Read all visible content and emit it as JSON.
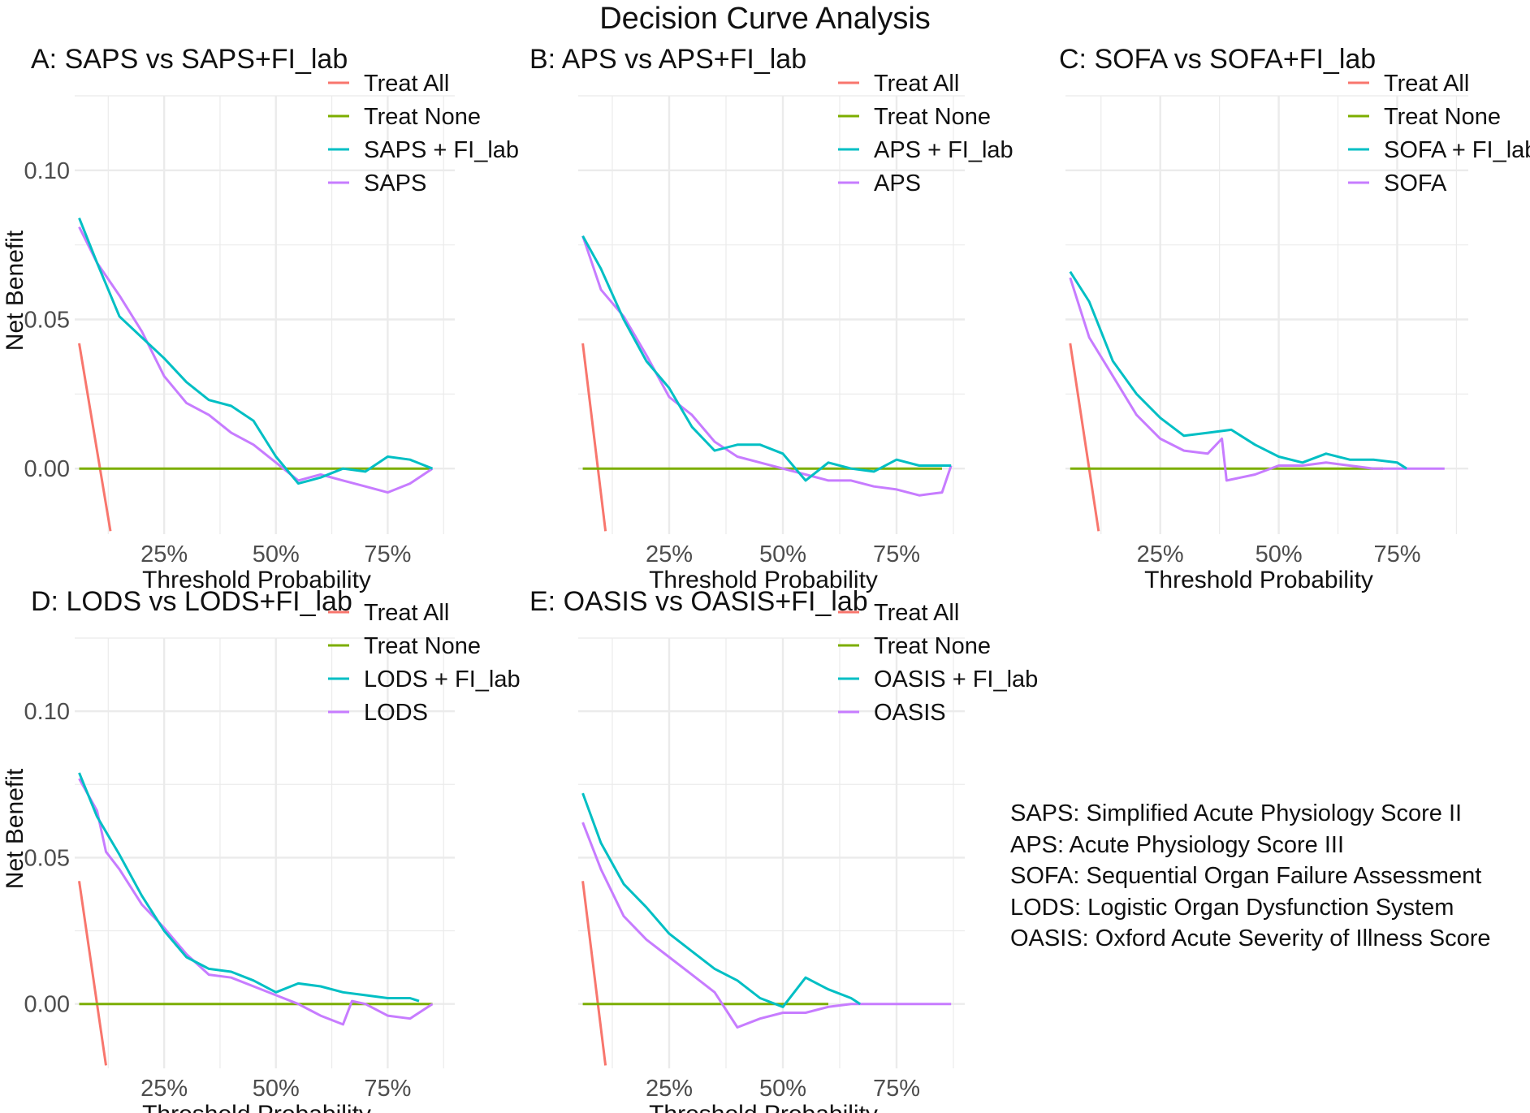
{
  "figure_title": "Decision Curve Analysis",
  "colors": {
    "treat_all": "#F8766D",
    "treat_none": "#7CAE00",
    "model_fi": "#00BFC4",
    "model_base": "#C77CFF",
    "grid": "#ebebeb",
    "tick_text": "#4d4d4d"
  },
  "abbreviations": [
    "SAPS: Simplified Acute Physiology Score II",
    "APS: Acute Physiology Score III",
    "SOFA: Sequential Organ Failure Assessment",
    "LODS: Logistic Organ Dysfunction System",
    "OASIS: Oxford Acute Severity of Illness Score"
  ],
  "chart_data": [
    {
      "id": "A",
      "type": "line",
      "title": "A: SAPS vs SAPS+FI_lab",
      "xlabel": "Threshold Probability",
      "ylabel": "Net Benefit",
      "x_ticks": [
        0.25,
        0.5,
        0.75
      ],
      "x_tick_labels": [
        "25%",
        "50%",
        "75%"
      ],
      "y_ticks": [
        0.0,
        0.05,
        0.1
      ],
      "y_tick_labels": [
        "0.00",
        "0.05",
        "0.10"
      ],
      "xlim": [
        0.05,
        0.9
      ],
      "ylim": [
        -0.022,
        0.125
      ],
      "legend": [
        "Treat All",
        "Treat None",
        "SAPS + FI_lab",
        "SAPS"
      ],
      "series": [
        {
          "name": "Treat All",
          "x": [
            0.06,
            0.13
          ],
          "y": [
            0.042,
            -0.021
          ]
        },
        {
          "name": "Treat None",
          "x": [
            0.06,
            0.85
          ],
          "y": [
            0.0,
            0.0
          ]
        },
        {
          "name": "SAPS + FI_lab",
          "x": [
            0.06,
            0.1,
            0.15,
            0.2,
            0.25,
            0.3,
            0.35,
            0.4,
            0.45,
            0.5,
            0.55,
            0.6,
            0.65,
            0.7,
            0.75,
            0.8,
            0.85
          ],
          "y": [
            0.084,
            0.069,
            0.051,
            0.044,
            0.037,
            0.029,
            0.023,
            0.021,
            0.016,
            0.004,
            -0.005,
            -0.003,
            0.0,
            -0.001,
            0.004,
            0.003,
            0.0
          ]
        },
        {
          "name": "SAPS",
          "x": [
            0.06,
            0.1,
            0.15,
            0.2,
            0.25,
            0.3,
            0.35,
            0.4,
            0.45,
            0.5,
            0.55,
            0.6,
            0.65,
            0.7,
            0.75,
            0.8,
            0.85
          ],
          "y": [
            0.081,
            0.069,
            0.058,
            0.046,
            0.031,
            0.022,
            0.018,
            0.012,
            0.008,
            0.002,
            -0.004,
            -0.002,
            -0.004,
            -0.006,
            -0.008,
            -0.005,
            0.0
          ]
        }
      ]
    },
    {
      "id": "B",
      "type": "line",
      "title": "B: APS vs APS+FI_lab",
      "xlabel": "Threshold Probability",
      "ylabel": "",
      "x_ticks": [
        0.25,
        0.5,
        0.75
      ],
      "x_tick_labels": [
        "25%",
        "50%",
        "75%"
      ],
      "y_ticks": [
        0.0,
        0.05,
        0.1
      ],
      "y_tick_labels": [],
      "xlim": [
        0.05,
        0.9
      ],
      "ylim": [
        -0.022,
        0.125
      ],
      "legend": [
        "Treat All",
        "Treat None",
        "APS + FI_lab",
        "APS"
      ],
      "series": [
        {
          "name": "Treat All",
          "x": [
            0.06,
            0.11
          ],
          "y": [
            0.042,
            -0.021
          ]
        },
        {
          "name": "Treat None",
          "x": [
            0.06,
            0.85
          ],
          "y": [
            0.0,
            0.0
          ]
        },
        {
          "name": "APS + FI_lab",
          "x": [
            0.06,
            0.1,
            0.15,
            0.2,
            0.25,
            0.3,
            0.35,
            0.4,
            0.45,
            0.5,
            0.55,
            0.6,
            0.65,
            0.7,
            0.75,
            0.8,
            0.87
          ],
          "y": [
            0.078,
            0.067,
            0.05,
            0.036,
            0.027,
            0.014,
            0.006,
            0.008,
            0.008,
            0.005,
            -0.004,
            0.002,
            0.0,
            -0.001,
            0.003,
            0.001,
            0.001
          ]
        },
        {
          "name": "APS",
          "x": [
            0.06,
            0.1,
            0.15,
            0.2,
            0.25,
            0.3,
            0.35,
            0.4,
            0.45,
            0.5,
            0.55,
            0.6,
            0.65,
            0.7,
            0.75,
            0.8,
            0.85,
            0.87
          ],
          "y": [
            0.078,
            0.06,
            0.051,
            0.038,
            0.024,
            0.018,
            0.009,
            0.004,
            0.002,
            0.0,
            -0.002,
            -0.004,
            -0.004,
            -0.006,
            -0.007,
            -0.009,
            -0.008,
            0.001
          ]
        }
      ]
    },
    {
      "id": "C",
      "type": "line",
      "title": "C: SOFA vs SOFA+FI_lab",
      "xlabel": "Threshold Probability",
      "ylabel": "",
      "x_ticks": [
        0.25,
        0.5,
        0.75
      ],
      "x_tick_labels": [
        "25%",
        "50%",
        "75%"
      ],
      "y_ticks": [
        0.0,
        0.05,
        0.1
      ],
      "y_tick_labels": [],
      "xlim": [
        0.05,
        0.9
      ],
      "ylim": [
        -0.022,
        0.125
      ],
      "legend": [
        "Treat All",
        "Treat None",
        "SOFA + FI_lab",
        "SOFA"
      ],
      "series": [
        {
          "name": "Treat All",
          "x": [
            0.06,
            0.12
          ],
          "y": [
            0.042,
            -0.021
          ]
        },
        {
          "name": "Treat None",
          "x": [
            0.06,
            0.72
          ],
          "y": [
            0.0,
            0.0
          ]
        },
        {
          "name": "SOFA + FI_lab",
          "x": [
            0.06,
            0.1,
            0.15,
            0.2,
            0.25,
            0.3,
            0.35,
            0.4,
            0.45,
            0.5,
            0.55,
            0.6,
            0.65,
            0.7,
            0.75,
            0.77
          ],
          "y": [
            0.066,
            0.056,
            0.036,
            0.025,
            0.017,
            0.011,
            0.012,
            0.013,
            0.008,
            0.004,
            0.002,
            0.005,
            0.003,
            0.003,
            0.002,
            0.0
          ]
        },
        {
          "name": "SOFA",
          "x": [
            0.06,
            0.1,
            0.15,
            0.2,
            0.25,
            0.3,
            0.35,
            0.38,
            0.39,
            0.45,
            0.5,
            0.55,
            0.6,
            0.65,
            0.7,
            0.75,
            0.8,
            0.85
          ],
          "y": [
            0.064,
            0.044,
            0.031,
            0.018,
            0.01,
            0.006,
            0.005,
            0.01,
            -0.004,
            -0.002,
            0.001,
            0.001,
            0.002,
            0.001,
            0.0,
            0.0,
            0.0,
            0.0
          ]
        }
      ]
    },
    {
      "id": "D",
      "type": "line",
      "title": "D: LODS vs LODS+FI_lab",
      "xlabel": "Threshold Probability",
      "ylabel": "Net Benefit",
      "x_ticks": [
        0.25,
        0.5,
        0.75
      ],
      "x_tick_labels": [
        "25%",
        "50%",
        "75%"
      ],
      "y_ticks": [
        0.0,
        0.05,
        0.1
      ],
      "y_tick_labels": [
        "0.00",
        "0.05",
        "0.10"
      ],
      "xlim": [
        0.05,
        0.9
      ],
      "ylim": [
        -0.022,
        0.125
      ],
      "legend": [
        "Treat All",
        "Treat None",
        "LODS + FI_lab",
        "LODS"
      ],
      "series": [
        {
          "name": "Treat All",
          "x": [
            0.06,
            0.12
          ],
          "y": [
            0.042,
            -0.021
          ]
        },
        {
          "name": "Treat None",
          "x": [
            0.06,
            0.85
          ],
          "y": [
            0.0,
            0.0
          ]
        },
        {
          "name": "LODS + FI_lab",
          "x": [
            0.06,
            0.1,
            0.15,
            0.2,
            0.25,
            0.3,
            0.35,
            0.4,
            0.45,
            0.5,
            0.55,
            0.6,
            0.65,
            0.7,
            0.75,
            0.8,
            0.82
          ],
          "y": [
            0.079,
            0.064,
            0.051,
            0.037,
            0.025,
            0.016,
            0.012,
            0.011,
            0.008,
            0.004,
            0.007,
            0.006,
            0.004,
            0.003,
            0.002,
            0.002,
            0.001
          ]
        },
        {
          "name": "LODS",
          "x": [
            0.06,
            0.1,
            0.12,
            0.15,
            0.2,
            0.25,
            0.3,
            0.35,
            0.4,
            0.45,
            0.5,
            0.55,
            0.6,
            0.65,
            0.67,
            0.7,
            0.75,
            0.8,
            0.85
          ],
          "y": [
            0.077,
            0.066,
            0.052,
            0.046,
            0.034,
            0.026,
            0.017,
            0.01,
            0.009,
            0.006,
            0.003,
            0.0,
            -0.004,
            -0.007,
            0.001,
            0.0,
            -0.004,
            -0.005,
            0.0
          ]
        }
      ]
    },
    {
      "id": "E",
      "type": "line",
      "title": "E: OASIS vs OASIS+FI_lab",
      "xlabel": "Threshold Probability",
      "ylabel": "",
      "x_ticks": [
        0.25,
        0.5,
        0.75
      ],
      "x_tick_labels": [
        "25%",
        "50%",
        "75%"
      ],
      "y_ticks": [
        0.0,
        0.05,
        0.1
      ],
      "y_tick_labels": [],
      "xlim": [
        0.05,
        0.9
      ],
      "ylim": [
        -0.022,
        0.125
      ],
      "legend": [
        "Treat All",
        "Treat None",
        "OASIS + FI_lab",
        "OASIS"
      ],
      "series": [
        {
          "name": "Treat All",
          "x": [
            0.06,
            0.11
          ],
          "y": [
            0.042,
            -0.021
          ]
        },
        {
          "name": "Treat None",
          "x": [
            0.06,
            0.6
          ],
          "y": [
            0.0,
            0.0
          ]
        },
        {
          "name": "OASIS + FI_lab",
          "x": [
            0.06,
            0.1,
            0.15,
            0.2,
            0.25,
            0.3,
            0.35,
            0.4,
            0.45,
            0.5,
            0.55,
            0.6,
            0.65,
            0.67
          ],
          "y": [
            0.072,
            0.055,
            0.041,
            0.033,
            0.024,
            0.018,
            0.012,
            0.008,
            0.002,
            -0.001,
            0.009,
            0.005,
            0.002,
            0.0
          ]
        },
        {
          "name": "OASIS",
          "x": [
            0.06,
            0.1,
            0.15,
            0.2,
            0.25,
            0.3,
            0.35,
            0.4,
            0.45,
            0.5,
            0.55,
            0.6,
            0.65,
            0.7,
            0.75,
            0.8,
            0.87
          ],
          "y": [
            0.062,
            0.046,
            0.03,
            0.022,
            0.016,
            0.01,
            0.004,
            -0.008,
            -0.005,
            -0.003,
            -0.003,
            -0.001,
            0.0,
            0.0,
            0.0,
            0.0,
            0.0
          ]
        }
      ]
    }
  ]
}
